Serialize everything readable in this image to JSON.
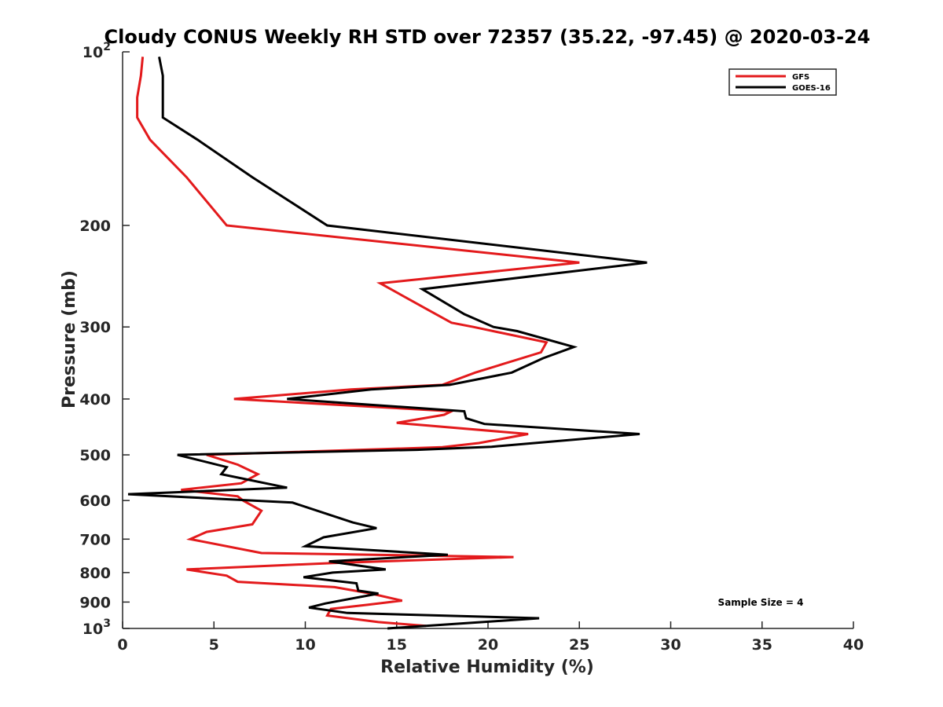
{
  "chart_data": {
    "type": "line",
    "title": "Cloudy CONUS Weekly RH STD over 72357 (35.22, -97.45) @ 2020-03-24",
    "xlabel": "Relative Humidity (%)",
    "ylabel": "Pressure (mb)",
    "xlim": [
      0,
      40
    ],
    "ylim": [
      100,
      1000
    ],
    "yscale": "log",
    "y_reversed": true,
    "xticks": [
      "0",
      "5",
      "10",
      "15",
      "20",
      "25",
      "30",
      "35",
      "40"
    ],
    "yticks": [
      {
        "value": 100,
        "base": "10",
        "exp": "2"
      },
      {
        "value": 200,
        "label": "200"
      },
      {
        "value": 300,
        "label": "300"
      },
      {
        "value": 400,
        "label": "400"
      },
      {
        "value": 500,
        "label": "500"
      },
      {
        "value": 600,
        "label": "600"
      },
      {
        "value": 700,
        "label": "700"
      },
      {
        "value": 800,
        "label": "800"
      },
      {
        "value": 900,
        "label": "900"
      },
      {
        "value": 1000,
        "base": "10",
        "exp": "3"
      }
    ],
    "grid": false,
    "legend_position": "top-right",
    "annotation": "Sample Size = 4",
    "series": [
      {
        "name": "GFS",
        "color": "#e31a1c",
        "x": [
          1.1,
          1.0,
          0.8,
          0.8,
          1.5,
          3.5,
          5.7,
          25.0,
          14.1,
          16.7,
          18.0,
          19.2,
          23.2,
          22.9,
          19.3,
          17.5,
          12.5,
          6.1,
          18.0,
          17.6,
          15.0,
          22.2,
          19.5,
          17.5,
          4.6,
          6.3,
          7.4,
          6.5,
          3.2,
          6.3,
          6.6,
          7.6,
          7.1,
          4.6,
          3.7,
          7.6,
          21.4,
          11.5,
          3.5,
          5.7,
          6.3,
          11.6,
          13.6,
          15.3,
          13.4,
          11.4,
          11.2,
          14.0,
          16.6
        ],
        "y": [
          102,
          110,
          120,
          130,
          142,
          165,
          200,
          232,
          252,
          280,
          295,
          300,
          319,
          332,
          360,
          378,
          385,
          400,
          420,
          426,
          440,
          460,
          477,
          485,
          500,
          520,
          540,
          560,
          575,
          590,
          600,
          625,
          660,
          680,
          700,
          740,
          752,
          770,
          790,
          810,
          830,
          848,
          870,
          895,
          910,
          925,
          950,
          975,
          990
        ]
      },
      {
        "name": "GOES-16",
        "color": "#000000",
        "x": [
          2.0,
          2.2,
          2.2,
          2.2,
          4.1,
          7.1,
          11.2,
          28.7,
          16.4,
          18.7,
          20.3,
          21.6,
          24.7,
          23.0,
          21.3,
          17.9,
          13.6,
          9.0,
          18.7,
          18.8,
          19.8,
          28.3,
          20.2,
          16.1,
          3.0,
          5.7,
          5.4,
          9.0,
          0.3,
          9.3,
          12.6,
          13.9,
          11.0,
          10.0,
          17.8,
          11.3,
          14.4,
          11.5,
          9.9,
          12.8,
          12.9,
          14.0,
          11.1,
          10.2,
          12.3,
          22.8,
          14.5
        ],
        "y": [
          102,
          110,
          118,
          130,
          142,
          165,
          200,
          232,
          258,
          285,
          300,
          305,
          325,
          340,
          360,
          378,
          385,
          400,
          420,
          432,
          442,
          460,
          484,
          490,
          500,
          525,
          540,
          570,
          585,
          605,
          655,
          670,
          695,
          720,
          745,
          765,
          790,
          800,
          815,
          835,
          860,
          870,
          905,
          920,
          940,
          960,
          1000
        ]
      }
    ]
  }
}
